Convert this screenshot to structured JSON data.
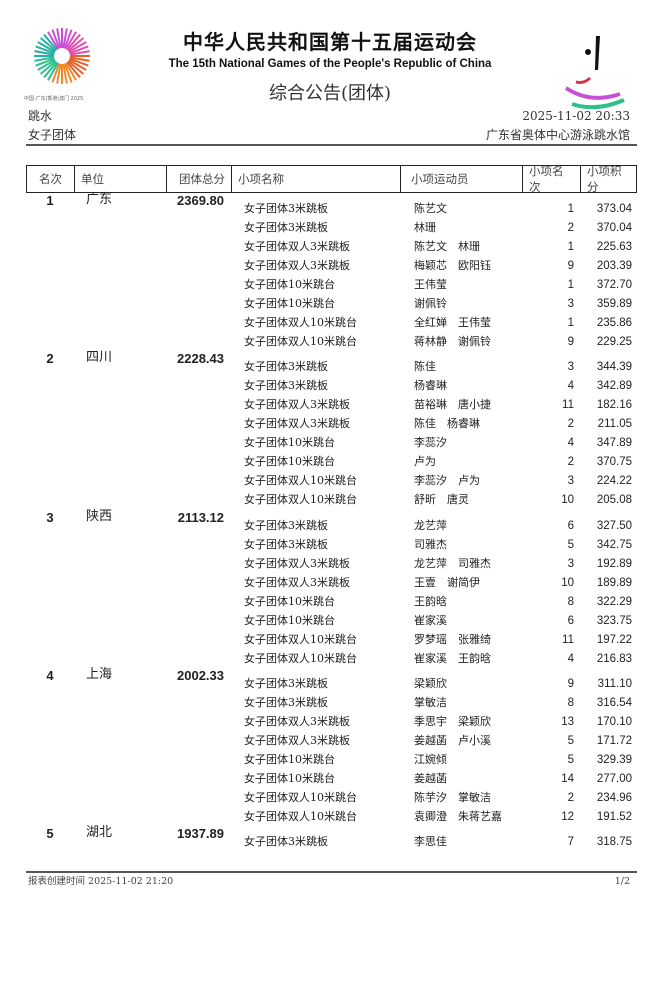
{
  "header": {
    "title_cn": "中华人民共和国第十五届运动会",
    "title_en": "The 15th National Games of the People's Republic of China",
    "subtitle": "综合公告(团体)",
    "logo_text": "中国·广东|香港|澳门 2025",
    "sport": "跳水",
    "event": "女子团体",
    "datetime": "2025-11-02 20:33",
    "venue": "广东省奥体中心游泳跳水馆"
  },
  "columns": [
    "名次",
    "单位",
    "团体总分",
    "小项名称",
    "小项运动员",
    "小项名次",
    "小项积分"
  ],
  "teams": [
    {
      "rank": "1",
      "unit": "广东",
      "total": "2369.80",
      "rows": [
        {
          "event": "女子团体3米跳板",
          "athletes": "陈艺文",
          "rank": "1",
          "points": "373.04"
        },
        {
          "event": "女子团体3米跳板",
          "athletes": "林珊",
          "rank": "2",
          "points": "370.04"
        },
        {
          "event": "女子团体双人3米跳板",
          "athletes": "陈艺文　林珊",
          "rank": "1",
          "points": "225.63"
        },
        {
          "event": "女子团体双人3米跳板",
          "athletes": "梅颖芯　欧阳钰",
          "rank": "9",
          "points": "203.39"
        },
        {
          "event": "女子团体10米跳台",
          "athletes": "王伟莹",
          "rank": "1",
          "points": "372.70"
        },
        {
          "event": "女子团体10米跳台",
          "athletes": "谢佩铃",
          "rank": "3",
          "points": "359.89"
        },
        {
          "event": "女子团体双人10米跳台",
          "athletes": "全红婵　王伟莹",
          "rank": "1",
          "points": "235.86"
        },
        {
          "event": "女子团体双人10米跳台",
          "athletes": "蒋林静　谢佩铃",
          "rank": "9",
          "points": "229.25"
        }
      ]
    },
    {
      "rank": "2",
      "unit": "四川",
      "total": "2228.43",
      "rows": [
        {
          "event": "女子团体3米跳板",
          "athletes": "陈佳",
          "rank": "3",
          "points": "344.39"
        },
        {
          "event": "女子团体3米跳板",
          "athletes": "杨睿琳",
          "rank": "4",
          "points": "342.89"
        },
        {
          "event": "女子团体双人3米跳板",
          "athletes": "苗裕琳　唐小捷",
          "rank": "11",
          "points": "182.16"
        },
        {
          "event": "女子团体双人3米跳板",
          "athletes": "陈佳　杨睿琳",
          "rank": "2",
          "points": "211.05"
        },
        {
          "event": "女子团体10米跳台",
          "athletes": "李蕊汐",
          "rank": "4",
          "points": "347.89"
        },
        {
          "event": "女子团体10米跳台",
          "athletes": "卢为",
          "rank": "2",
          "points": "370.75"
        },
        {
          "event": "女子团体双人10米跳台",
          "athletes": "李蕊汐　卢为",
          "rank": "3",
          "points": "224.22"
        },
        {
          "event": "女子团体双人10米跳台",
          "athletes": "舒昕　唐灵",
          "rank": "10",
          "points": "205.08"
        }
      ]
    },
    {
      "rank": "3",
      "unit": "陕西",
      "total": "2113.12",
      "rows": [
        {
          "event": "女子团体3米跳板",
          "athletes": "龙艺萍",
          "rank": "6",
          "points": "327.50"
        },
        {
          "event": "女子团体3米跳板",
          "athletes": "司雅杰",
          "rank": "5",
          "points": "342.75"
        },
        {
          "event": "女子团体双人3米跳板",
          "athletes": "龙艺萍　司雅杰",
          "rank": "3",
          "points": "192.89"
        },
        {
          "event": "女子团体双人3米跳板",
          "athletes": "王壹　谢简伊",
          "rank": "10",
          "points": "189.89"
        },
        {
          "event": "女子团体10米跳台",
          "athletes": "王韵晗",
          "rank": "8",
          "points": "322.29"
        },
        {
          "event": "女子团体10米跳台",
          "athletes": "崔家溪",
          "rank": "6",
          "points": "323.75"
        },
        {
          "event": "女子团体双人10米跳台",
          "athletes": "罗梦瑶　张雅绮",
          "rank": "11",
          "points": "197.22"
        },
        {
          "event": "女子团体双人10米跳台",
          "athletes": "崔家溪　王韵晗",
          "rank": "4",
          "points": "216.83"
        }
      ]
    },
    {
      "rank": "4",
      "unit": "上海",
      "total": "2002.33",
      "rows": [
        {
          "event": "女子团体3米跳板",
          "athletes": "梁颖欣",
          "rank": "9",
          "points": "311.10"
        },
        {
          "event": "女子团体3米跳板",
          "athletes": "掌敏洁",
          "rank": "8",
          "points": "316.54"
        },
        {
          "event": "女子团体双人3米跳板",
          "athletes": "季思宇　梁颖欣",
          "rank": "13",
          "points": "170.10"
        },
        {
          "event": "女子团体双人3米跳板",
          "athletes": "姜越菡　卢小溪",
          "rank": "5",
          "points": "171.72"
        },
        {
          "event": "女子团体10米跳台",
          "athletes": "江婉倾",
          "rank": "5",
          "points": "329.39"
        },
        {
          "event": "女子团体10米跳台",
          "athletes": "姜越菡",
          "rank": "14",
          "points": "277.00"
        },
        {
          "event": "女子团体双人10米跳台",
          "athletes": "陈芋汐　掌敏洁",
          "rank": "2",
          "points": "234.96"
        },
        {
          "event": "女子团体双人10米跳台",
          "athletes": "袁卿澄　朱蒋艺嘉",
          "rank": "12",
          "points": "191.52"
        }
      ]
    },
    {
      "rank": "5",
      "unit": "湖北",
      "total": "1937.89",
      "rows": [
        {
          "event": "女子团体3米跳板",
          "athletes": "李思佳",
          "rank": "7",
          "points": "318.75"
        }
      ]
    }
  ],
  "footer": {
    "created": "报表创建时间 2025-11-02 21:20",
    "page": "1/2"
  }
}
